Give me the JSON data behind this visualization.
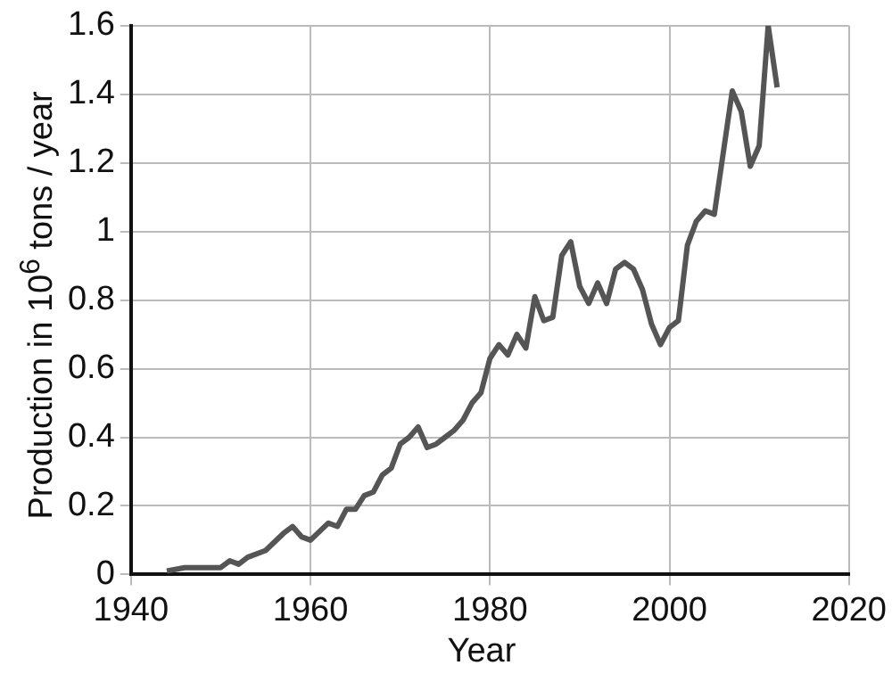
{
  "chart_data": {
    "type": "line",
    "xlabel": "Year",
    "ylabel": "Production in 10$^{6}$ tons / year",
    "x": [
      1944,
      1946,
      1948,
      1950,
      1951,
      1952,
      1953,
      1955,
      1957,
      1958,
      1959,
      1960,
      1962,
      1963,
      1964,
      1965,
      1966,
      1967,
      1968,
      1969,
      1970,
      1971,
      1972,
      1973,
      1974,
      1975,
      1976,
      1977,
      1978,
      1979,
      1980,
      1981,
      1982,
      1983,
      1984,
      1985,
      1986,
      1987,
      1988,
      1989,
      1990,
      1991,
      1992,
      1993,
      1994,
      1995,
      1996,
      1997,
      1998,
      1999,
      2000,
      2001,
      2002,
      2003,
      2004,
      2005,
      2006,
      2007,
      2008,
      2009,
      2010,
      2011,
      2012
    ],
    "series": [
      {
        "color": "#555555",
        "values": [
          0.01,
          0.02,
          0.02,
          0.02,
          0.04,
          0.03,
          0.05,
          0.07,
          0.12,
          0.14,
          0.11,
          0.1,
          0.15,
          0.14,
          0.19,
          0.19,
          0.23,
          0.24,
          0.29,
          0.31,
          0.38,
          0.4,
          0.43,
          0.37,
          0.38,
          0.4,
          0.42,
          0.45,
          0.5,
          0.53,
          0.63,
          0.67,
          0.64,
          0.7,
          0.66,
          0.81,
          0.74,
          0.75,
          0.93,
          0.97,
          0.84,
          0.79,
          0.85,
          0.79,
          0.89,
          0.91,
          0.89,
          0.83,
          0.73,
          0.67,
          0.72,
          0.74,
          0.96,
          1.03,
          1.06,
          1.05,
          1.23,
          1.41,
          1.35,
          1.19,
          1.25,
          1.6,
          1.42
        ]
      }
    ],
    "xlim": [
      1940,
      2020
    ],
    "xticks": [
      1940,
      1960,
      1980,
      2000,
      2020
    ],
    "ylim": [
      0,
      1.6
    ],
    "yticks": [
      0,
      {
        "value": 0.2,
        "label": "0.2"
      },
      {
        "value": 0.4,
        "label": "0.4"
      },
      {
        "value": 0.6,
        "label": "0.6"
      },
      {
        "value": 0.8,
        "label": "0.8"
      },
      1,
      {
        "value": 1.2,
        "label": "1.2"
      },
      {
        "value": 1.4,
        "label": "1.4"
      },
      {
        "value": 1.6,
        "label": "1.6"
      }
    ],
    "grid": true,
    "legend": false,
    "marker": "none",
    "line_style": "solid"
  }
}
